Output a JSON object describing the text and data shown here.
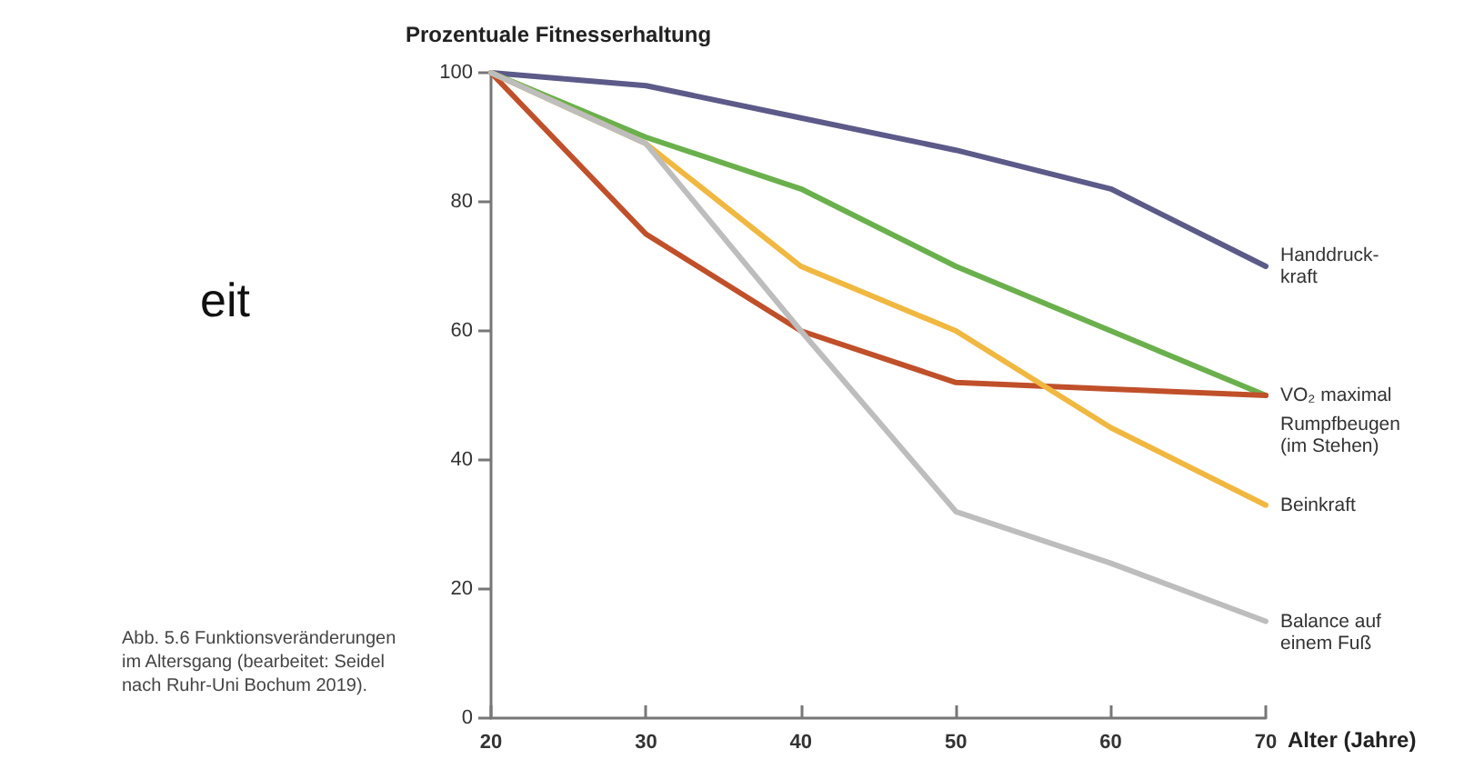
{
  "chart_data": {
    "type": "line",
    "title": "Prozentuale Fitnesserhaltung",
    "xlabel": "Alter (Jahre)",
    "x": [
      20,
      30,
      40,
      50,
      60,
      70
    ],
    "xlim": [
      20,
      70
    ],
    "xticks": [
      20,
      30,
      40,
      50,
      60,
      70
    ],
    "ylim": [
      0,
      100
    ],
    "yticks": [
      0,
      20,
      40,
      60,
      80,
      100
    ],
    "grid": false,
    "legend": false,
    "marker": "none",
    "line_style": "solid",
    "series": [
      {
        "name": "Handdruck-\nkraft",
        "color": "#5c5a88",
        "values": [
          100,
          98,
          93,
          88,
          82,
          70
        ]
      },
      {
        "name": "VO₂ maximal",
        "color": "#6ab04c",
        "values": [
          100,
          90,
          82,
          70,
          60,
          50
        ]
      },
      {
        "name": "Rumpfbeugen\n(im Stehen)",
        "color": "#c0502a",
        "values": [
          100,
          75,
          60,
          52,
          51,
          50
        ]
      },
      {
        "name": "Beinkraft",
        "color": "#f0b840",
        "values": [
          100,
          89,
          70,
          60,
          45,
          33
        ]
      },
      {
        "name": "Balance auf\neinem Fuß",
        "color": "#bdbdbd",
        "values": [
          100,
          89,
          60,
          32,
          24,
          15
        ]
      }
    ],
    "annotations": [
      "eit",
      "Abb. 5.6 Funktionsveränderungen im Altersgang (bearbeitet: Seidel nach Ruhr-Uni Bochum 2019)."
    ]
  }
}
